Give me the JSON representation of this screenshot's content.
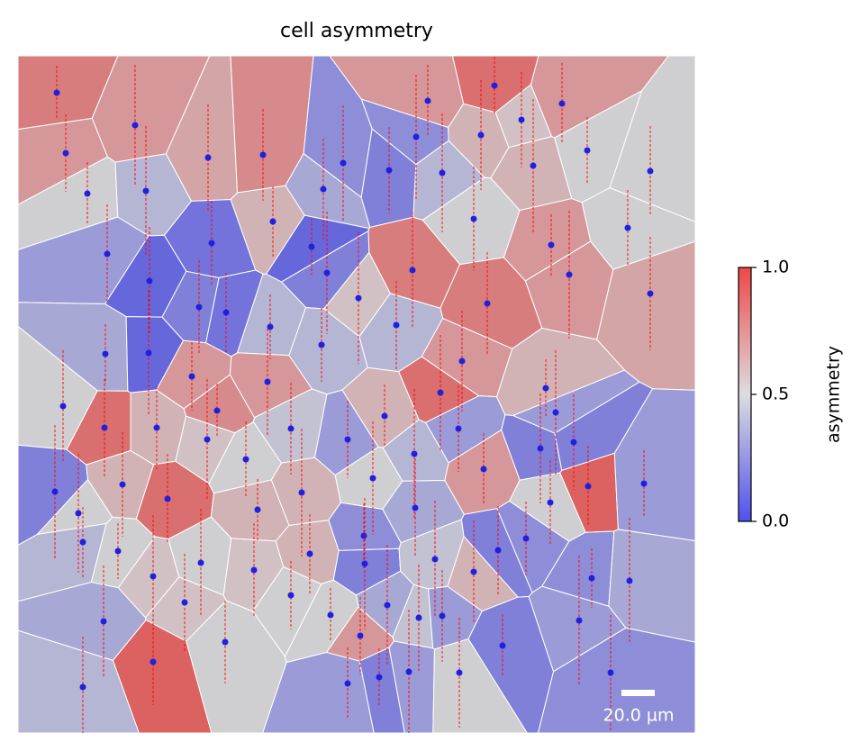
{
  "chart_data": {
    "type": "cell-map",
    "title": "cell asymmetry",
    "values": [
      0.8,
      0.7,
      0.65,
      0.75,
      0.7,
      0.5,
      0.4,
      0.25,
      0.35,
      0.2,
      0.7,
      0.85,
      0.25,
      0.6,
      0.55,
      0.7,
      0.5,
      0.6,
      0.4,
      0.5,
      0.5,
      0.5,
      0.7,
      0.7,
      0.65,
      0.3,
      0.15,
      0.6,
      0.1,
      0.2,
      0.1,
      0.2,
      0.15,
      0.4,
      0.55,
      0.8,
      0.8,
      0.4,
      0.4,
      0.35,
      0.1,
      0.5,
      0.85,
      0.6,
      0.7,
      0.75,
      0.55,
      0.7,
      0.45,
      0.3,
      0.6,
      0.4,
      0.85,
      0.7,
      0.3,
      0.7,
      0.6,
      0.3,
      0.2,
      0.2,
      0.9,
      0.3,
      0.2,
      0.5,
      0.6,
      0.85,
      0.5,
      0.6,
      0.6,
      0.5,
      0.35,
      0.5,
      0.4,
      0.5,
      0.55,
      0.5,
      0.55,
      0.6,
      0.25,
      0.2,
      0.45,
      0.6,
      0.2,
      0.25,
      0.25,
      0.35,
      0.35,
      0.55,
      0.5,
      0.5,
      0.5,
      0.35,
      0.45,
      0.3,
      0.7,
      0.2,
      0.3,
      0.25,
      0.4,
      0.9,
      0.3,
      0.2,
      0.3,
      0.5
    ],
    "clim": [
      0,
      1.0
    ],
    "cticks": [
      {
        "value": 0,
        "label": "0.0"
      },
      {
        "value": 0.5,
        "label": "0.5"
      },
      {
        "value": 1.0,
        "label": "1.0"
      }
    ],
    "colorbar_label": "asymmetry",
    "scale_bar_label": "20.0 µm"
  }
}
